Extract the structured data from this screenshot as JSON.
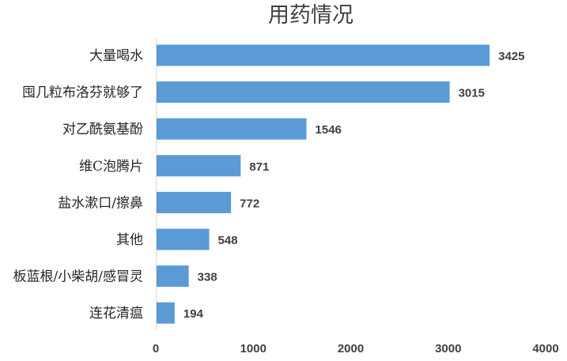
{
  "chart_data": {
    "type": "bar",
    "orientation": "horizontal",
    "title": "用药情况",
    "xlabel": "",
    "ylabel": "",
    "categories": [
      "大量喝水",
      "囤几粒布洛芬就够了",
      "对乙酰氨基酚",
      "维C泡腾片",
      "盐水漱口/擦鼻",
      "其他",
      "板蓝根/小柴胡/感冒灵",
      "连花清瘟"
    ],
    "values": [
      3425,
      3015,
      1546,
      871,
      772,
      548,
      338,
      194
    ],
    "xlim": [
      0,
      4000
    ],
    "xticks": [
      0,
      1000,
      2000,
      3000,
      4000
    ],
    "grid": false,
    "legend": "none",
    "bar_color": "#5B9BD5"
  }
}
